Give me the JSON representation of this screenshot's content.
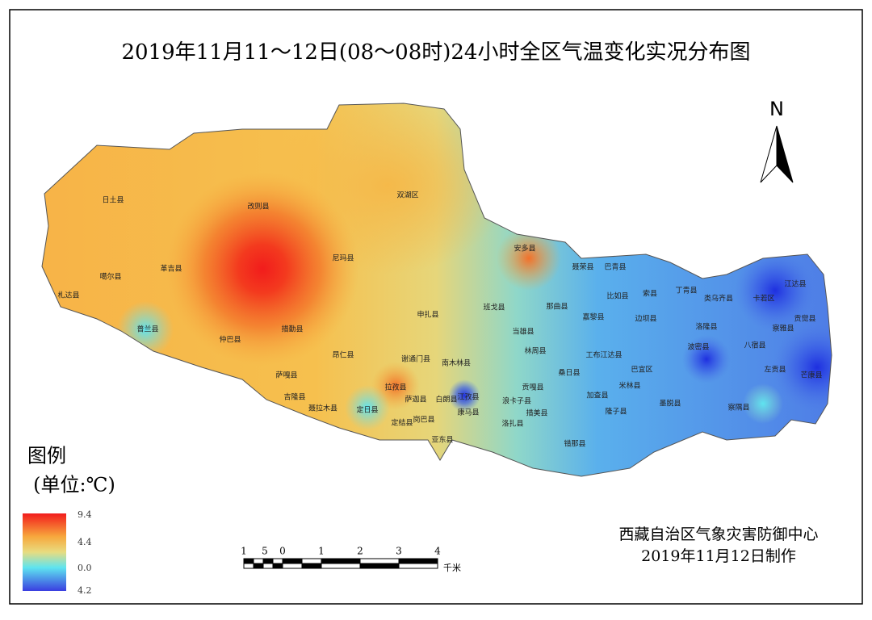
{
  "title": "2019年11月11～12日(08～08时)24小时全区气温变化实况分布图",
  "north": "N",
  "legend": {
    "title": "图例",
    "unit": "(单位:℃)",
    "labels": [
      "9.4",
      "4.4",
      "0.0",
      "4.2"
    ]
  },
  "scale_bar": {
    "labels": [
      "1",
      "5",
      "0",
      "1",
      "2",
      "3",
      "4"
    ],
    "unit": "千米"
  },
  "credit": {
    "org": "西藏自治区气象灾害防御中心",
    "date": "2019年11月12日制作"
  },
  "regions": [
    "日土县",
    "改则县",
    "双湖区",
    "尼玛县",
    "噶尔县",
    "革吉县",
    "札达县",
    "普兰县",
    "仲巴县",
    "措勤县",
    "申扎县",
    "班戈县",
    "安多县",
    "聂荣县",
    "巴青县",
    "丁青县",
    "江达县",
    "索县",
    "比如县",
    "那曲县",
    "类乌齐县",
    "卡若区",
    "察雅县",
    "贡觉县",
    "边坝县",
    "洛隆县",
    "嘉黎县",
    "当雄县",
    "八宿县",
    "萨嘎县",
    "昂仁县",
    "谢通门县",
    "南木林县",
    "林周县",
    "工布江达县",
    "波密县",
    "左贡县",
    "芒康县",
    "巴宜区",
    "米林县",
    "墨脱县",
    "察隅县",
    "吉隆县",
    "聂拉木县",
    "定日县",
    "拉孜县",
    "萨迦县",
    "定结县",
    "岗巴县",
    "白朗县",
    "江孜县",
    "康马县",
    "亚东县",
    "浪卡子县",
    "洛扎县",
    "措美县",
    "隆子县",
    "错那县",
    "桑日县",
    "加查县",
    "贡嘎县"
  ]
}
